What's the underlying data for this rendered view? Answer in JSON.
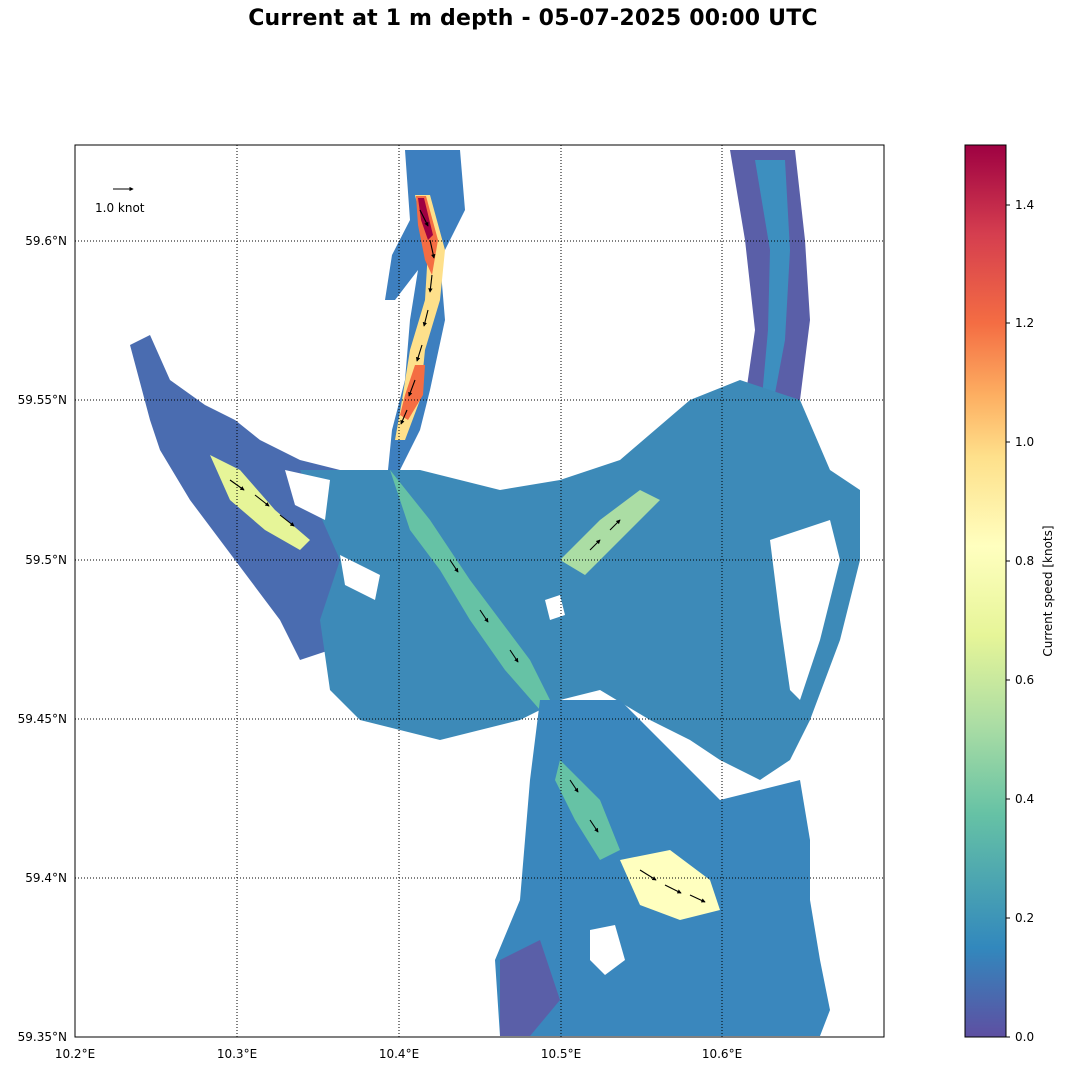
{
  "title": "Current at 1 m depth - 05-07-2025 00:00 UTC",
  "map": {
    "lon_ticks": [
      "10.2°E",
      "10.3°E",
      "10.4°E",
      "10.5°E",
      "10.6°E"
    ],
    "lat_ticks": [
      "59.6°N",
      "59.55°N",
      "59.5°N",
      "59.45°N",
      "59.4°N",
      "59.35°N"
    ],
    "lon_range": [
      10.2,
      10.7
    ],
    "lat_range": [
      59.35,
      59.63
    ],
    "gridlines": true,
    "reference_arrow_label": "1.0 knot",
    "colors": {
      "water_low": "#5e4fa2",
      "water_mid": "#3288bd",
      "water_high": "#66c2a5",
      "fast": "#fee08b",
      "faster": "#f46d43",
      "fastest": "#9e0142"
    }
  },
  "colorbar": {
    "label": "Current speed [knots]",
    "ticks": [
      "0.0",
      "0.2",
      "0.4",
      "0.6",
      "0.8",
      "1.0",
      "1.2",
      "1.4"
    ],
    "range": [
      0,
      1.5
    ],
    "colormap": [
      "#5e4fa2",
      "#3288bd",
      "#66c2a5",
      "#abdda4",
      "#e6f598",
      "#ffffbf",
      "#fee08b",
      "#fdae61",
      "#f46d43",
      "#d53e4f",
      "#9e0142"
    ]
  }
}
